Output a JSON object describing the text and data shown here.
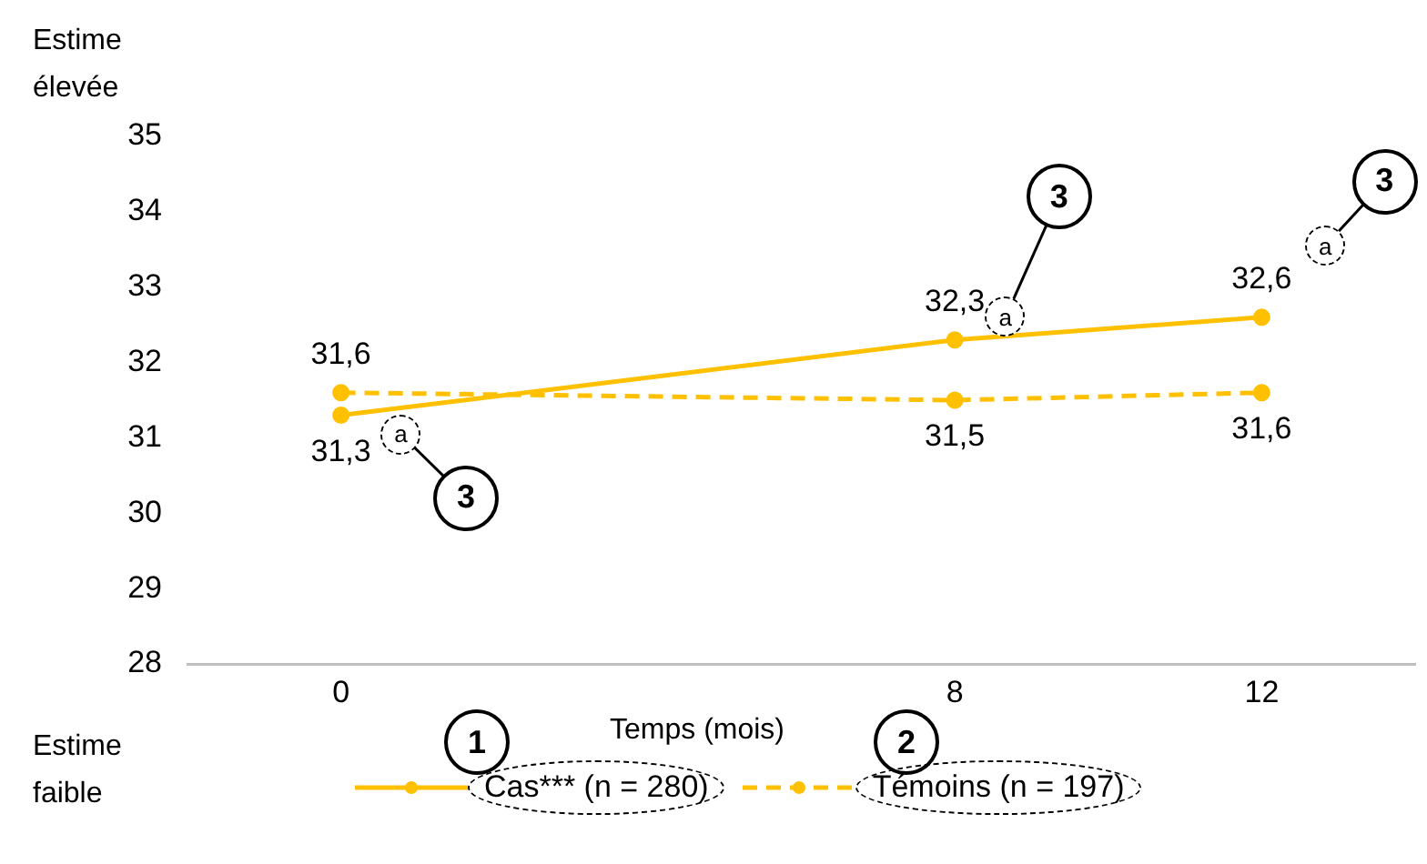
{
  "chart_data": {
    "type": "line",
    "xlabel": "Temps (mois)",
    "x": [
      0,
      8,
      12
    ],
    "xlim": [
      -2,
      14
    ],
    "xticks": [
      0,
      8,
      12
    ],
    "ylim": [
      28,
      35
    ],
    "yticks": [
      28,
      29,
      30,
      31,
      32,
      33,
      34,
      35
    ],
    "series": [
      {
        "name": "Cas*** (n = 280)",
        "color": "#ffc000",
        "values": [
          31.3,
          32.3,
          32.6
        ],
        "value_labels": [
          "31,3",
          "32,3",
          "32,6"
        ],
        "line_style": "solid"
      },
      {
        "name": "Témoins (n = 197)",
        "color": "#ffc000",
        "values": [
          31.6,
          31.5,
          31.6
        ],
        "value_labels": [
          "31,6",
          "31,5",
          "31,6"
        ],
        "line_style": "dashed"
      }
    ],
    "marker": "circle",
    "grid": false,
    "legend": "bottom",
    "annotations": [
      "Estime élevée",
      "Estime faible",
      "1",
      "2",
      {
        "text": "a",
        "x": 0.78,
        "y": 31.05
      },
      {
        "text": "3",
        "x": 1.63,
        "y": 30.2
      },
      {
        "text": "a",
        "x": 8.66,
        "y": 32.6
      },
      {
        "text": "3",
        "x": 9.36,
        "y": 34.2
      },
      {
        "text": "a",
        "x": 12.83,
        "y": 33.55
      },
      {
        "text": "3",
        "x": 13.6,
        "y": 34.4
      }
    ]
  }
}
